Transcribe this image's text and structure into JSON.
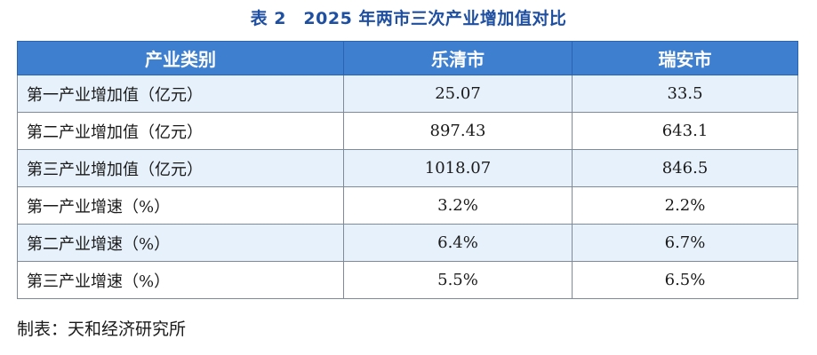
{
  "title": "表 2　2025 年两市三次产业增加值对比",
  "table": {
    "headers": [
      "产业类别",
      "乐清市",
      "瑞安市"
    ],
    "rows": [
      [
        "第一产业增加值（亿元）",
        "25.07",
        "33.5"
      ],
      [
        "第二产业增加值（亿元）",
        "897.43",
        "643.1"
      ],
      [
        "第三产业增加值（亿元）",
        "1018.07",
        "846.5"
      ],
      [
        "第一产业增速（%）",
        "3.2%",
        "2.2%"
      ],
      [
        "第二产业增速（%）",
        "6.4%",
        "6.7%"
      ],
      [
        "第三产业增速（%）",
        "5.5%",
        "6.5%"
      ]
    ],
    "row_shading": "alternate rows light blue, starting with first data row",
    "header_color": "#3f7fcf",
    "shade_color": "#e7f1fb"
  },
  "source": "制表：天和经济研究所"
}
